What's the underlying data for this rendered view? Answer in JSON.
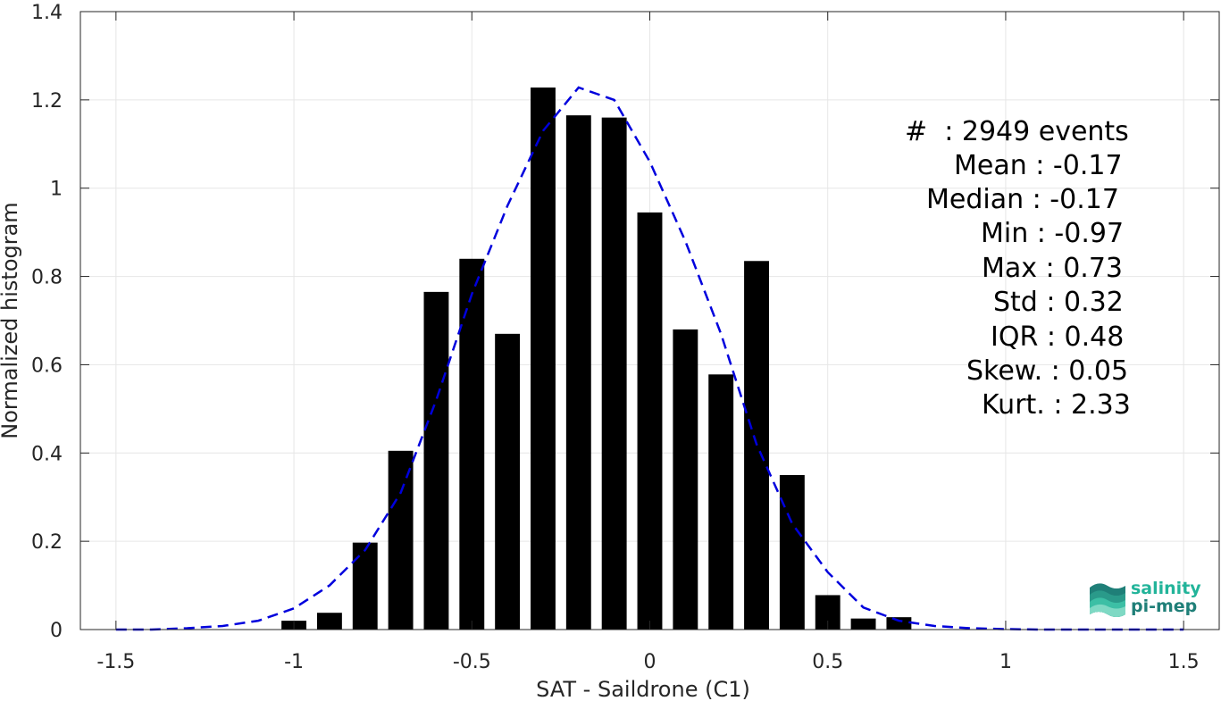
{
  "chart_data": {
    "type": "bar",
    "xlabel": "SAT - Saildrone (C1)",
    "ylabel": "Normalized histogram",
    "xlim": [
      -1.6,
      1.6
    ],
    "ylim": [
      0,
      1.4
    ],
    "xticks": [
      -1.5,
      -1,
      -0.5,
      0,
      0.5,
      1,
      1.5
    ],
    "xtick_labels": [
      "-1.5",
      "-1",
      "-0.5",
      "0",
      "0.5",
      "1",
      "1.5"
    ],
    "yticks": [
      0,
      0.2,
      0.4,
      0.6,
      0.8,
      1,
      1.2,
      1.4
    ],
    "ytick_labels": [
      "0",
      "0.2",
      "0.4",
      "0.6",
      "0.8",
      "1",
      "1.2",
      "1.4"
    ],
    "grid": true,
    "bar_width": 0.07,
    "bar_color": "#000000",
    "bars": {
      "x": [
        -1.0,
        -0.9,
        -0.8,
        -0.7,
        -0.6,
        -0.5,
        -0.4,
        -0.3,
        -0.2,
        -0.1,
        0.0,
        0.1,
        0.2,
        0.3,
        0.4,
        0.5,
        0.6,
        0.7
      ],
      "values": [
        0.02,
        0.038,
        0.197,
        0.405,
        0.765,
        0.84,
        0.67,
        1.228,
        1.165,
        1.16,
        0.945,
        0.68,
        0.578,
        0.835,
        0.35,
        0.078,
        0.025,
        0.028
      ]
    },
    "fit_curve": {
      "style": "dashed",
      "color": "#0000dd",
      "x": [
        -1.5,
        -1.4,
        -1.3,
        -1.2,
        -1.1,
        -1.0,
        -0.9,
        -0.8,
        -0.7,
        -0.6,
        -0.5,
        -0.4,
        -0.3,
        -0.2,
        -0.1,
        0.0,
        0.1,
        0.2,
        0.3,
        0.4,
        0.5,
        0.6,
        0.7,
        0.8,
        0.9,
        1.0,
        1.1,
        1.2,
        1.3,
        1.4,
        1.5
      ],
      "y": [
        0.0,
        0.0,
        0.003,
        0.008,
        0.02,
        0.048,
        0.1,
        0.18,
        0.31,
        0.52,
        0.76,
        0.96,
        1.13,
        1.228,
        1.2,
        1.06,
        0.88,
        0.67,
        0.42,
        0.24,
        0.13,
        0.05,
        0.02,
        0.008,
        0.003,
        0.001,
        0.0,
        0.0,
        0.0,
        0.0,
        0.0
      ]
    },
    "stats": [
      {
        "label": "#  : 2949 events"
      },
      {
        "label": "Mean : -0.17"
      },
      {
        "label": "Median : -0.17"
      },
      {
        "label": "Min : -0.97"
      },
      {
        "label": "Max : 0.73"
      },
      {
        "label": "Std : 0.32"
      },
      {
        "label": "IQR : 0.48"
      },
      {
        "label": "Skew. : 0.05"
      },
      {
        "label": "Kurt. : 2.33"
      }
    ]
  },
  "logo": {
    "line1": "salinity",
    "line2": "pi-mep"
  },
  "colors": {
    "axis": "#262626",
    "grid": "#e6e6e6",
    "fit": "#0000dd",
    "logo_light": "#22b49a",
    "logo_dark": "#1f7f78"
  }
}
